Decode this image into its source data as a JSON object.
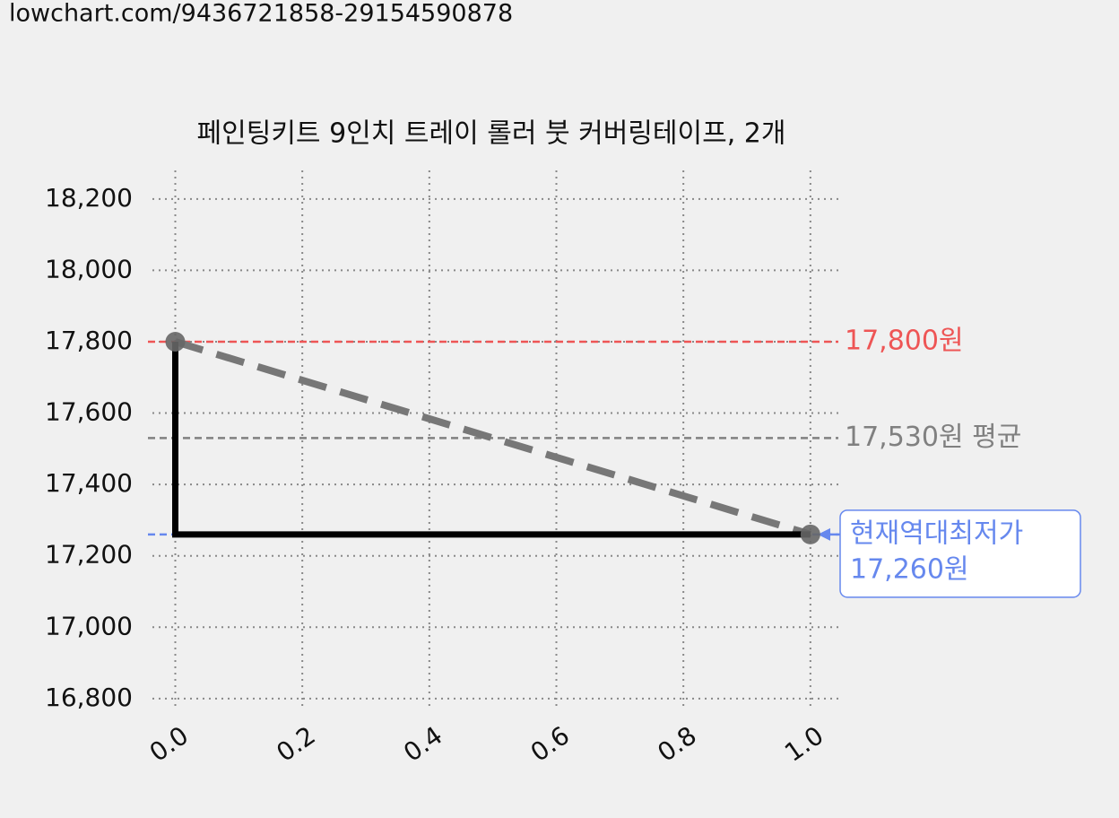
{
  "url": "lowchart.com/9436721858-29154590878",
  "chart_data": {
    "type": "line",
    "title": "페인팅키트 9인치 트레이 롤러 붓 커버링테이프, 2개",
    "xlim": [
      -0.036,
      1.044
    ],
    "ylim": [
      16772,
      18280
    ],
    "xticks": [
      {
        "value": 0,
        "label": "0.0"
      },
      {
        "value": 0.2,
        "label": "0.2"
      },
      {
        "value": 0.4,
        "label": "0.4"
      },
      {
        "value": 0.6,
        "label": "0.6"
      },
      {
        "value": 0.8,
        "label": "0.8"
      },
      {
        "value": 1,
        "label": "1.0"
      }
    ],
    "yticks": [
      {
        "value": 16800,
        "label": "16,800"
      },
      {
        "value": 17000,
        "label": "17,000"
      },
      {
        "value": 17200,
        "label": "17,200"
      },
      {
        "value": 17400,
        "label": "17,400"
      },
      {
        "value": 17600,
        "label": "17,600"
      },
      {
        "value": 17800,
        "label": "17,800"
      },
      {
        "value": 18000,
        "label": "18,000"
      },
      {
        "value": 18200,
        "label": "18,200"
      }
    ],
    "grid": true,
    "reference_lines": [
      {
        "value": 17800,
        "label": "17,800원",
        "color": "#ee5555"
      },
      {
        "value": 17530,
        "label": "17,530원 평균",
        "color": "#808080"
      },
      {
        "value": 17260,
        "label": [
          "현재역대최저가",
          "17,260원"
        ],
        "color": "#6688ee"
      }
    ],
    "lines": [
      {
        "x": [
          0,
          1
        ],
        "y": [
          17800,
          17260
        ],
        "color": "#777777",
        "width": 8,
        "dash": true
      },
      {
        "x": [
          0,
          0,
          1
        ],
        "y": [
          17800,
          17260,
          17260
        ],
        "color": "#000000",
        "width": 7,
        "dash": false
      }
    ],
    "points": {
      "x": [
        0,
        1
      ],
      "y": [
        17800,
        17260
      ],
      "color": "#666666"
    }
  }
}
